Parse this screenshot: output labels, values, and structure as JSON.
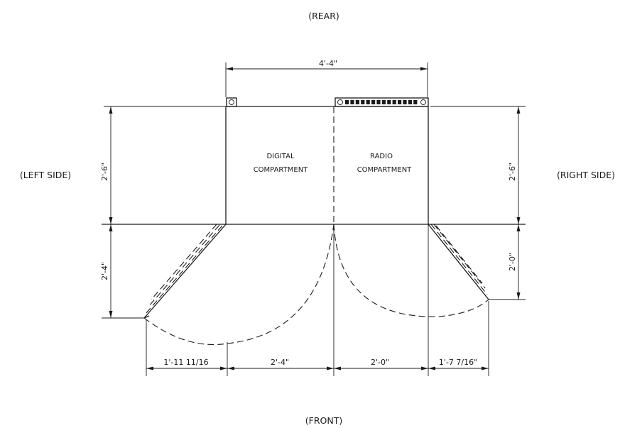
{
  "orientation": {
    "rear": "(REAR)",
    "front": "(FRONT)",
    "left": "(LEFT SIDE)",
    "right": "(RIGHT SIDE)"
  },
  "compartments": {
    "digital": [
      "DIGITAL",
      "COMPARTMENT"
    ],
    "radio": [
      "RADIO",
      "COMPARTMENT"
    ]
  },
  "dimensions": {
    "overall_width": "4'-4\"",
    "left_depth": "2'-6\"",
    "right_depth": "2'-6\"",
    "left_door_depth": "2'-4\"",
    "right_door_depth": "2'-0\"",
    "bottom": [
      "1'-11 11/16",
      "2'-4\"",
      "2'-0\"",
      "1'-7 7/16\""
    ]
  }
}
